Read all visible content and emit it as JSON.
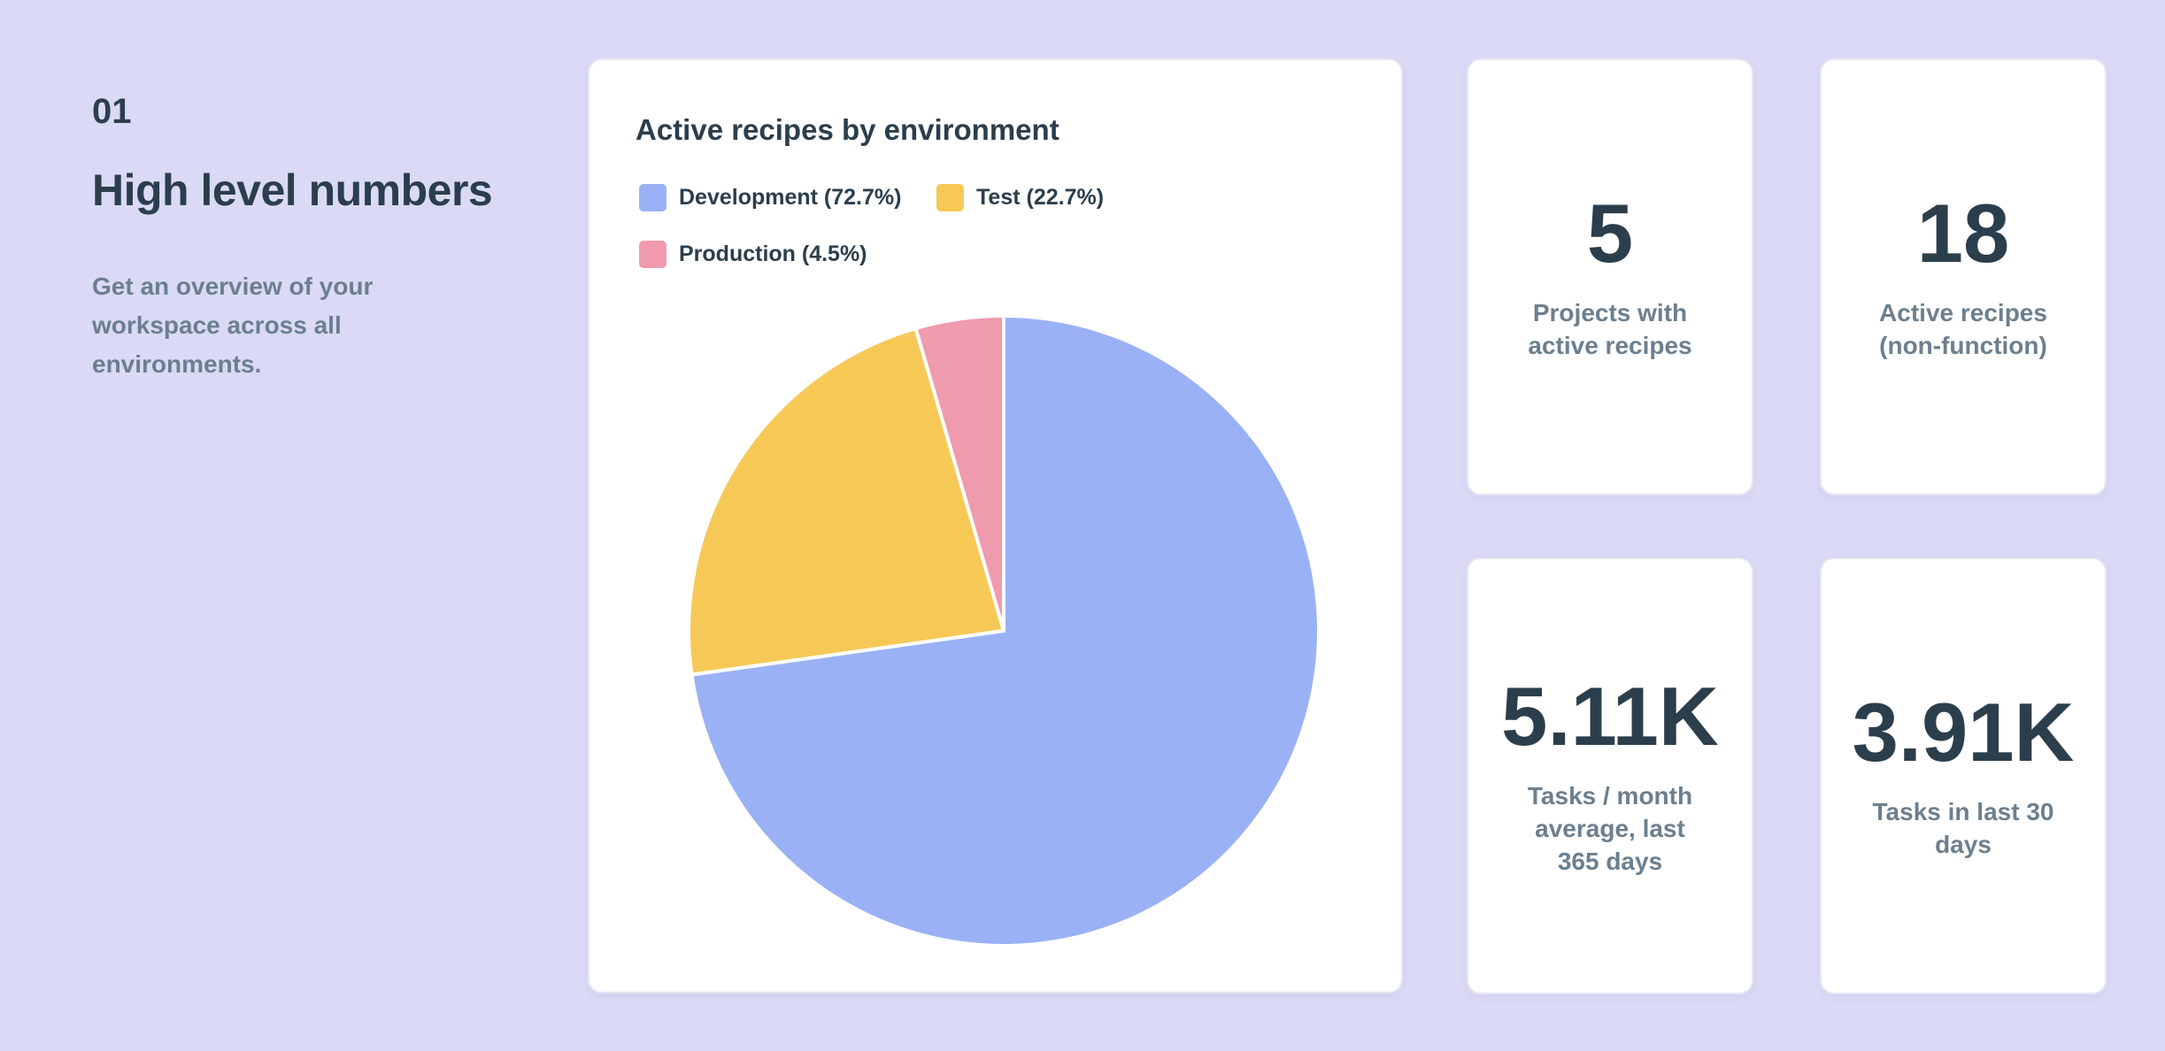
{
  "section": {
    "number": "01",
    "title": "High level numbers",
    "description": "Get an overview of your workspace across all environments."
  },
  "chart_data": {
    "type": "pie",
    "title": "Active recipes by environment",
    "legend_position": "top-left",
    "start_angle": "top, clockwise",
    "slices": [
      {
        "label": "Development (72.7%)",
        "name": "Development",
        "value": 72.7,
        "color": "#9ab1f5"
      },
      {
        "label": "Test (22.7%)",
        "name": "Test",
        "value": 22.7,
        "color": "#f6c957"
      },
      {
        "label": "Production (4.5%)",
        "name": "Production",
        "value": 4.5,
        "color": "#f09aae"
      }
    ]
  },
  "stats": [
    {
      "value": "5",
      "label": "Projects with active recipes"
    },
    {
      "value": "18",
      "label": "Active recipes (non-function)"
    },
    {
      "value": "5.11K",
      "label": "Tasks / month average, last 365 days"
    },
    {
      "value": "3.91K",
      "label": "Tasks in last 30 days"
    }
  ],
  "colors": {
    "background": "#dadaf6",
    "text": "#2b3e4c",
    "muted": "#6b7f8e"
  }
}
